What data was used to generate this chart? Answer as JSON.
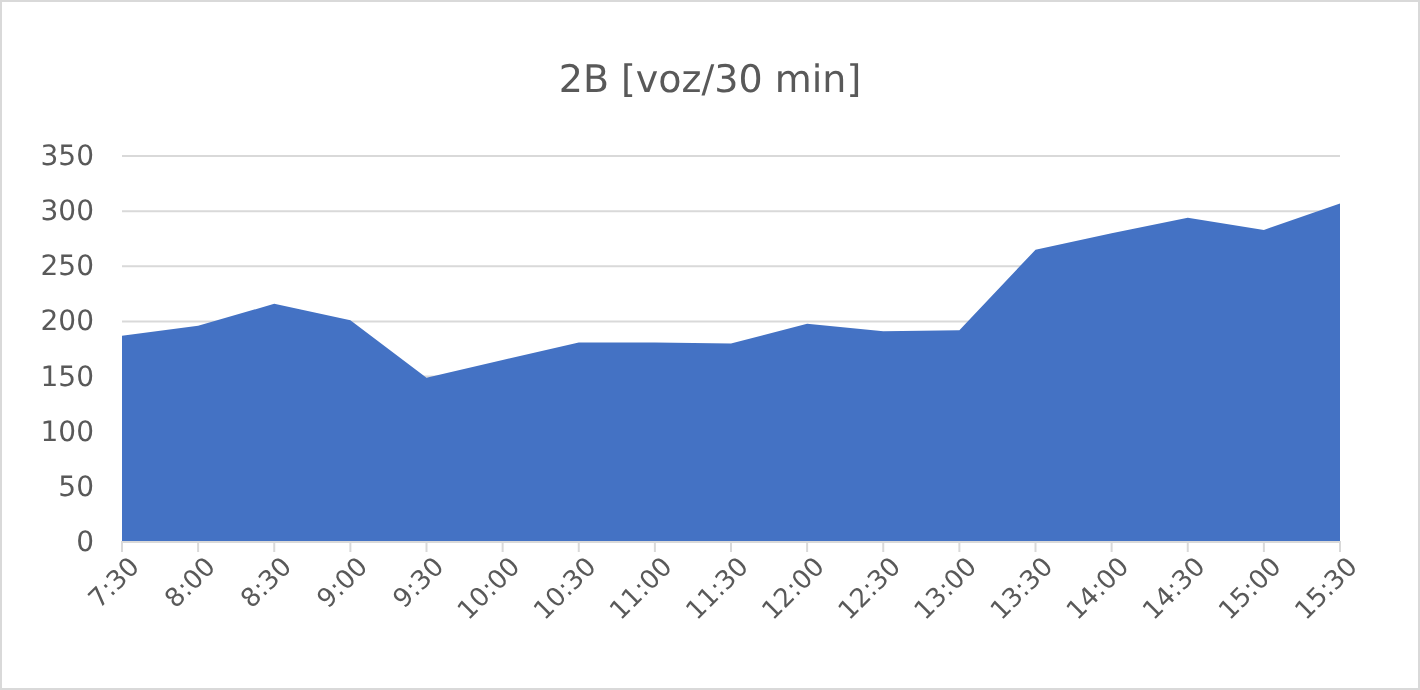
{
  "chart_data": {
    "type": "area",
    "title": "2B [voz/30 min]",
    "categories": [
      "7:30",
      "8:00",
      "8:30",
      "9:00",
      "9:30",
      "10:00",
      "10:30",
      "11:00",
      "11:30",
      "12:00",
      "12:30",
      "13:00",
      "13:30",
      "14:00",
      "14:30",
      "15:00",
      "15:30"
    ],
    "values": [
      187,
      196,
      216,
      201,
      149,
      165,
      181,
      181,
      180,
      198,
      191,
      192,
      265,
      280,
      294,
      283,
      307
    ],
    "color": "#4472c4",
    "ylim": [
      0,
      350
    ],
    "yticks": [
      0,
      50,
      100,
      150,
      200,
      250,
      300,
      350
    ],
    "grid": "y"
  }
}
